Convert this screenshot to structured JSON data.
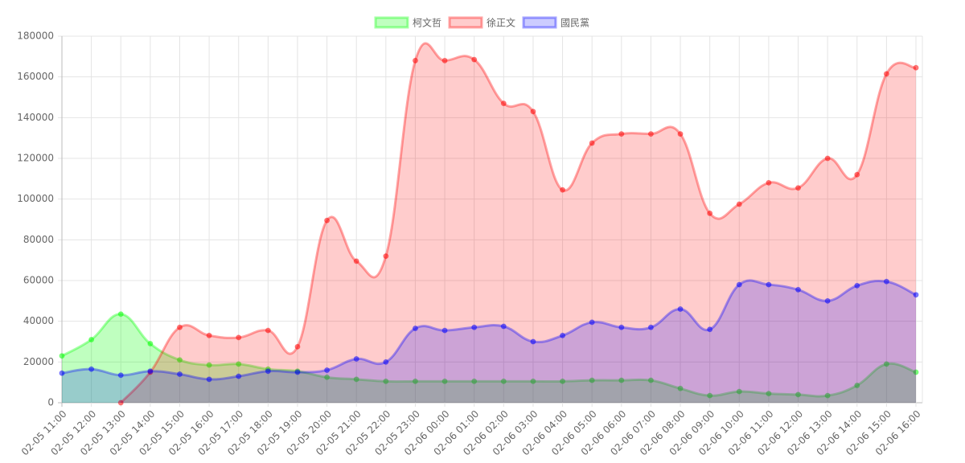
{
  "chart_data": {
    "type": "line",
    "categories": [
      "02-05 11:00",
      "02-05 12:00",
      "02-05 13:00",
      "02-05 14:00",
      "02-05 15:00",
      "02-05 16:00",
      "02-05 17:00",
      "02-05 18:00",
      "02-05 19:00",
      "02-05 20:00",
      "02-05 21:00",
      "02-05 22:00",
      "02-05 23:00",
      "02-06 00:00",
      "02-06 01:00",
      "02-06 02:00",
      "02-06 03:00",
      "02-06 04:00",
      "02-06 05:00",
      "02-06 06:00",
      "02-06 07:00",
      "02-06 08:00",
      "02-06 09:00",
      "02-06 10:00",
      "02-06 11:00",
      "02-06 12:00",
      "02-06 13:00",
      "02-06 14:00",
      "02-06 15:00",
      "02-06 16:00"
    ],
    "series": [
      {
        "name": "柯文哲",
        "color": "rgba(0,255,0,0.25)",
        "values": [
          23000,
          31000,
          43500,
          29000,
          21000,
          18500,
          19000,
          16500,
          15500,
          12500,
          11500,
          10500,
          10500,
          10500,
          10500,
          10500,
          10500,
          10500,
          11000,
          11000,
          11000,
          7000,
          3500,
          5500,
          4500,
          4000,
          3500,
          8500,
          19000,
          15000
        ]
      },
      {
        "name": "徐正文",
        "color": "rgba(255,0,0,0.2)",
        "values": [
          null,
          null,
          0,
          15000,
          37000,
          33000,
          32000,
          35500,
          27500,
          89500,
          69500,
          72000,
          168000,
          168000,
          168500,
          147000,
          143000,
          104500,
          127500,
          132000,
          132000,
          132000,
          93000,
          97500,
          108000,
          105500,
          120000,
          112000,
          161500,
          164500
        ]
      },
      {
        "name": "國民黨",
        "color": "rgba(0,0,255,0.2)",
        "values": [
          14500,
          16500,
          13500,
          15500,
          14000,
          11500,
          13000,
          15500,
          15000,
          16000,
          21500,
          20000,
          36500,
          35500,
          37000,
          37500,
          30000,
          33000,
          39500,
          37000,
          37000,
          46000,
          36000,
          58000,
          58000,
          55500,
          50000,
          57500,
          59500,
          53000
        ]
      }
    ],
    "ylim": [
      0,
      180000
    ],
    "yticks": [
      0,
      20000,
      40000,
      60000,
      80000,
      100000,
      120000,
      140000,
      160000,
      180000
    ],
    "grid": true,
    "legend": "top"
  }
}
